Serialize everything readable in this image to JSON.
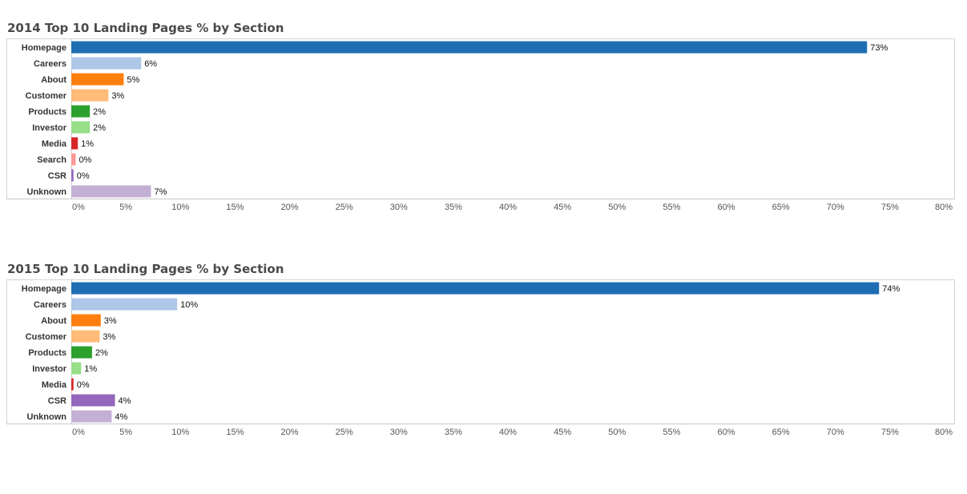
{
  "chart_data": [
    {
      "type": "bar",
      "orientation": "horizontal",
      "title": "2014 Top 10 Landing Pages % by Section",
      "categories": [
        "Homepage",
        "Careers",
        "About",
        "Customer",
        "Products",
        "Investor",
        "Media",
        "Search",
        "CSR",
        "Unknown"
      ],
      "values": [
        73,
        6,
        5,
        3,
        2,
        2,
        1,
        0,
        0,
        7
      ],
      "value_labels": [
        "73%",
        "6%",
        "5%",
        "3%",
        "2%",
        "2%",
        "1%",
        "0%",
        "0%",
        "7%"
      ],
      "bar_values": [
        72.9,
        6.4,
        4.8,
        3.4,
        1.7,
        1.7,
        0.6,
        0.4,
        0.2,
        7.3
      ],
      "colors": [
        "#1f6eb4",
        "#aec7e8",
        "#ff7f0e",
        "#ffbb78",
        "#2ca02c",
        "#98df8a",
        "#d62728",
        "#ff9896",
        "#9467bd",
        "#c5b0d5"
      ],
      "xlim": [
        0,
        80
      ],
      "x_ticks": [
        "0%",
        "5%",
        "10%",
        "15%",
        "20%",
        "25%",
        "30%",
        "35%",
        "40%",
        "45%",
        "50%",
        "55%",
        "60%",
        "65%",
        "70%",
        "75%",
        "80%"
      ],
      "grid": false
    },
    {
      "type": "bar",
      "orientation": "horizontal",
      "title": "2015 Top 10 Landing Pages % by Section",
      "categories": [
        "Homepage",
        "Careers",
        "About",
        "Customer",
        "Products",
        "Investor",
        "Media",
        "CSR",
        "Unknown"
      ],
      "values": [
        74,
        10,
        3,
        3,
        2,
        1,
        0,
        4,
        4
      ],
      "value_labels": [
        "74%",
        "10%",
        "3%",
        "3%",
        "2%",
        "1%",
        "0%",
        "4%",
        "4%"
      ],
      "bar_values": [
        74.0,
        9.7,
        2.7,
        2.6,
        1.9,
        0.9,
        0.2,
        4.0,
        3.7
      ],
      "colors": [
        "#1f6eb4",
        "#aec7e8",
        "#ff7f0e",
        "#ffbb78",
        "#2ca02c",
        "#98df8a",
        "#d62728",
        "#9467bd",
        "#c5b0d5"
      ],
      "xlim": [
        0,
        80
      ],
      "x_ticks": [
        "0%",
        "5%",
        "10%",
        "15%",
        "20%",
        "25%",
        "30%",
        "35%",
        "40%",
        "45%",
        "50%",
        "55%",
        "60%",
        "65%",
        "70%",
        "75%",
        "80%"
      ],
      "grid": false
    }
  ]
}
